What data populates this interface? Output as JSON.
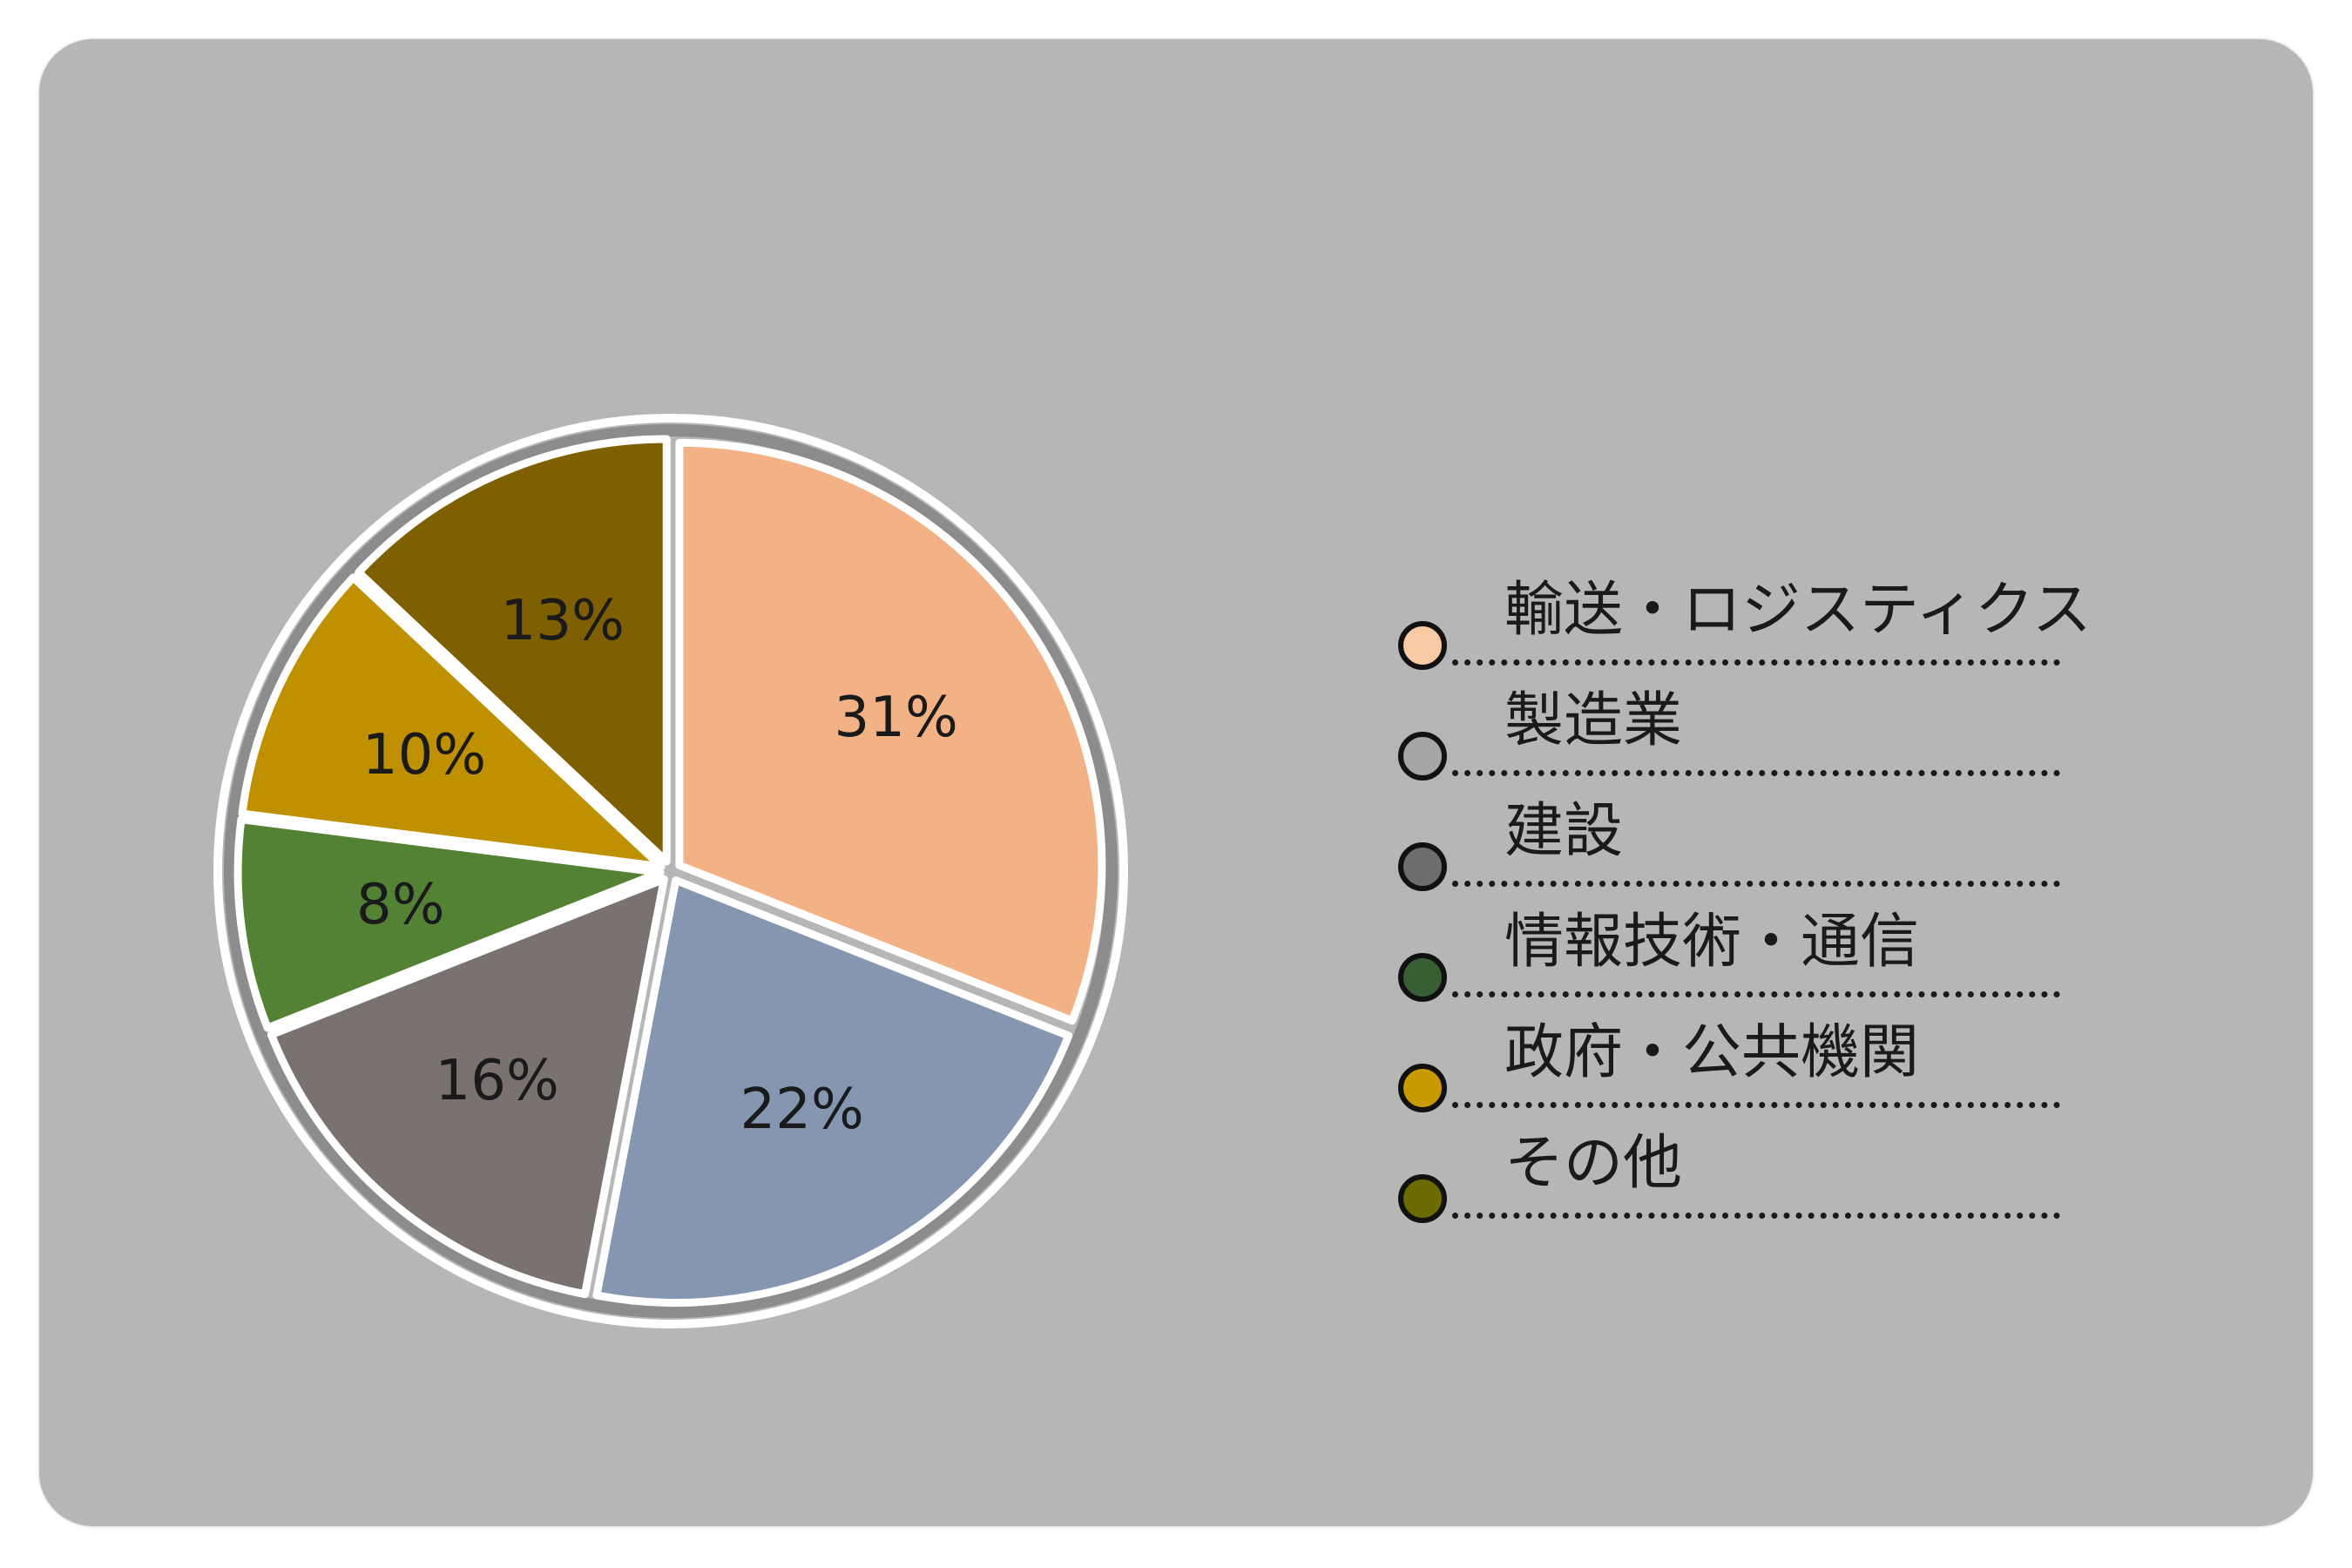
{
  "chart_data": {
    "type": "pie",
    "categories": [
      "輸送・ロジスティクス",
      "製造業",
      "建設",
      "情報技術・通信",
      "政府・公共機関",
      "その他"
    ],
    "values": [
      31,
      22,
      16,
      8,
      10,
      13
    ],
    "value_labels": [
      "31%",
      "22%",
      "16%",
      "8%",
      "10%",
      "13%"
    ],
    "colors": [
      "#f3b186",
      "#8597b0",
      "#7a7271",
      "#548235",
      "#bf9000",
      "#7f6000"
    ],
    "label_colors": [
      "#1a1a1a",
      "#1a1a1a",
      "#1a1a1a",
      "#1a1a1a",
      "#1a1a1a",
      "#ffffff"
    ],
    "legend_marker_colors": [
      "#f8cba4",
      "#a6a6a6",
      "#6d6d6d",
      "#375f33",
      "#c99a00",
      "#6b6b00"
    ],
    "legend_position": "right",
    "start_angle": "top",
    "direction": "clockwise"
  },
  "legend": {
    "items": [
      {
        "label": "輸送・ロジスティクス"
      },
      {
        "label": "製造業"
      },
      {
        "label": "建設"
      },
      {
        "label": "情報技術・通信"
      },
      {
        "label": "政府・公共機関"
      },
      {
        "label": "その他"
      }
    ]
  }
}
